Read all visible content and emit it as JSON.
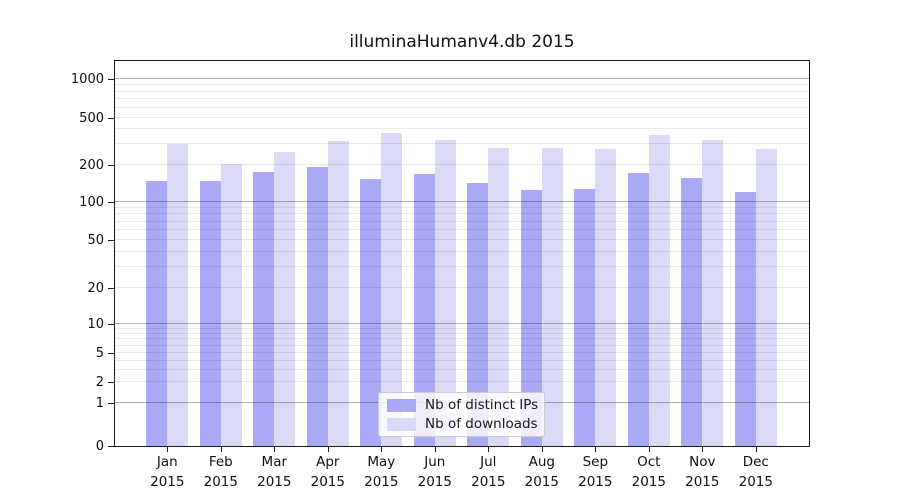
{
  "chart_data": {
    "type": "bar",
    "title": "illuminaHumanv4.db 2015",
    "categories": [
      "Jan",
      "Feb",
      "Mar",
      "Apr",
      "May",
      "Jun",
      "Jul",
      "Aug",
      "Sep",
      "Oct",
      "Nov",
      "Dec"
    ],
    "year_label": "2015",
    "series": [
      {
        "name": "Nb of distinct IPs",
        "color": "#a9a9f5",
        "values": [
          147,
          148,
          174,
          194,
          154,
          169,
          144,
          125,
          128,
          172,
          157,
          121
        ]
      },
      {
        "name": "Nb of downloads",
        "color": "#dadaf7",
        "values": [
          303,
          206,
          258,
          321,
          375,
          325,
          281,
          281,
          274,
          360,
          325,
          274
        ]
      }
    ],
    "y_ticks": [
      0,
      1,
      2,
      5,
      10,
      20,
      50,
      100,
      200,
      500,
      1000
    ],
    "y_scale": "log1p",
    "ylim": [
      0,
      1400
    ],
    "grid": "horizontal",
    "legend_position": "lower-center"
  }
}
